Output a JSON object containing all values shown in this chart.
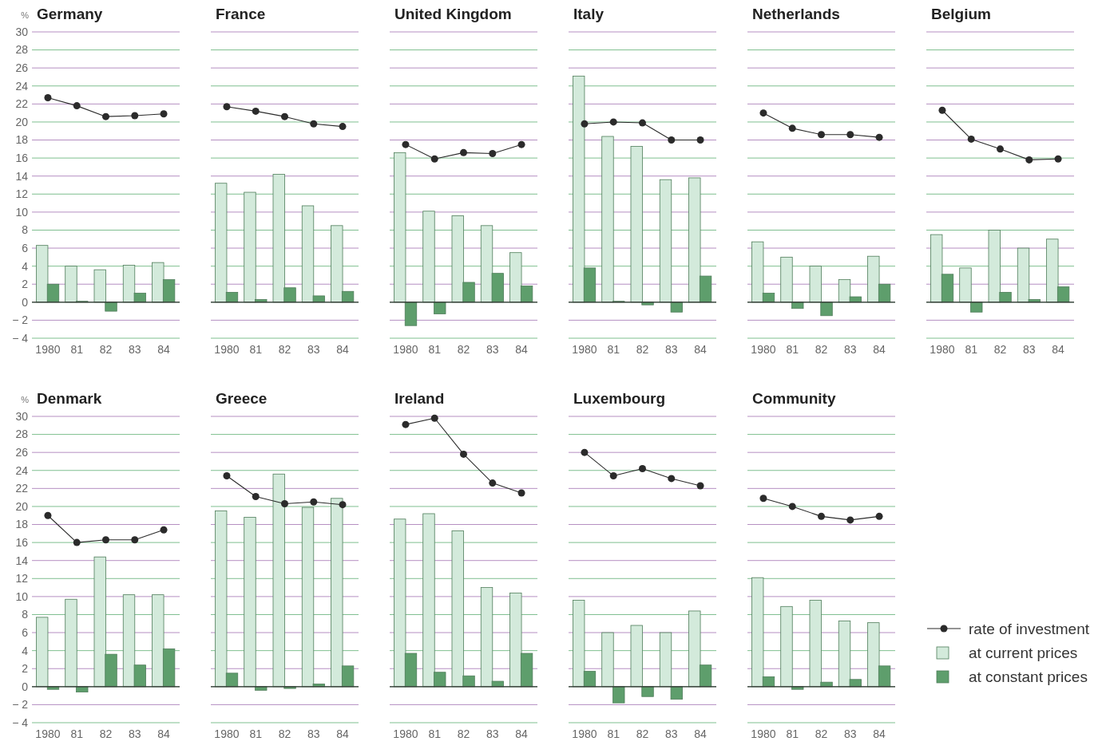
{
  "chart_data": [
    {
      "type": "bar",
      "title": "Germany",
      "ylabel": "%",
      "categories": [
        "1980",
        "81",
        "82",
        "83",
        "84"
      ],
      "ylim": [
        -4,
        30
      ],
      "yticks": [
        -4,
        -2,
        0,
        2,
        4,
        6,
        8,
        10,
        12,
        14,
        16,
        18,
        20,
        22,
        24,
        26,
        28,
        30
      ],
      "grid": true,
      "series": [
        {
          "color": "#d3eadb",
          "values": [
            6.3,
            4.0,
            3.6,
            4.1,
            4.4
          ]
        },
        {
          "color": "#5e9e6c",
          "values": [
            2.0,
            0.1,
            -1.0,
            1.0,
            2.5
          ]
        },
        {
          "type": "line",
          "marker": "circle",
          "color": "#2b2b2b",
          "values": [
            22.7,
            21.8,
            20.6,
            20.7,
            20.9
          ]
        }
      ]
    },
    {
      "type": "bar",
      "title": "France",
      "categories": [
        "1980",
        "81",
        "82",
        "83",
        "84"
      ],
      "ylim": [
        -4,
        30
      ],
      "yticks": [
        -4,
        -2,
        0,
        2,
        4,
        6,
        8,
        10,
        12,
        14,
        16,
        18,
        20,
        22,
        24,
        26,
        28,
        30
      ],
      "grid": true,
      "tick_labels": "x",
      "series": [
        {
          "color": "#d3eadb",
          "values": [
            13.2,
            12.2,
            14.2,
            10.7,
            8.5
          ]
        },
        {
          "color": "#5e9e6c",
          "values": [
            1.1,
            0.3,
            1.6,
            0.7,
            1.2
          ]
        },
        {
          "type": "line",
          "marker": "circle",
          "color": "#2b2b2b",
          "values": [
            21.7,
            21.2,
            20.6,
            19.8,
            19.5
          ]
        }
      ]
    },
    {
      "type": "bar",
      "title": "United Kingdom",
      "categories": [
        "1980",
        "81",
        "82",
        "83",
        "84"
      ],
      "ylim": [
        -4,
        30
      ],
      "yticks": [
        -4,
        -2,
        0,
        2,
        4,
        6,
        8,
        10,
        12,
        14,
        16,
        18,
        20,
        22,
        24,
        26,
        28,
        30
      ],
      "grid": true,
      "tick_labels": "x",
      "series": [
        {
          "color": "#d3eadb",
          "values": [
            16.6,
            10.1,
            9.6,
            8.5,
            5.5
          ]
        },
        {
          "color": "#5e9e6c",
          "values": [
            -2.6,
            -1.3,
            2.2,
            3.2,
            1.8
          ]
        },
        {
          "type": "line",
          "marker": "circle",
          "color": "#2b2b2b",
          "values": [
            17.5,
            15.9,
            16.6,
            16.5,
            17.5
          ]
        }
      ]
    },
    {
      "type": "bar",
      "title": "Italy",
      "categories": [
        "1980",
        "81",
        "82",
        "83",
        "84"
      ],
      "ylim": [
        -4,
        30
      ],
      "yticks": [
        -4,
        -2,
        0,
        2,
        4,
        6,
        8,
        10,
        12,
        14,
        16,
        18,
        20,
        22,
        24,
        26,
        28,
        30
      ],
      "grid": true,
      "tick_labels": "x",
      "series": [
        {
          "color": "#d3eadb",
          "values": [
            25.1,
            18.4,
            17.3,
            13.6,
            13.8
          ]
        },
        {
          "color": "#5e9e6c",
          "values": [
            3.8,
            0.1,
            -0.3,
            -1.1,
            2.9
          ]
        },
        {
          "type": "line",
          "marker": "circle",
          "color": "#2b2b2b",
          "values": [
            19.8,
            20.0,
            19.9,
            18.0,
            18.0
          ]
        }
      ]
    },
    {
      "type": "bar",
      "title": "Netherlands",
      "categories": [
        "1980",
        "81",
        "82",
        "83",
        "84"
      ],
      "ylim": [
        -4,
        30
      ],
      "yticks": [
        -4,
        -2,
        0,
        2,
        4,
        6,
        8,
        10,
        12,
        14,
        16,
        18,
        20,
        22,
        24,
        26,
        28,
        30
      ],
      "grid": true,
      "tick_labels": "x",
      "series": [
        {
          "color": "#d3eadb",
          "values": [
            6.7,
            5.0,
            4.0,
            2.5,
            5.1
          ]
        },
        {
          "color": "#5e9e6c",
          "values": [
            1.0,
            -0.7,
            -1.5,
            0.6,
            2.0
          ]
        },
        {
          "type": "line",
          "marker": "circle",
          "color": "#2b2b2b",
          "values": [
            21.0,
            19.3,
            18.6,
            18.6,
            18.3
          ]
        }
      ]
    },
    {
      "type": "bar",
      "title": "Belgium",
      "categories": [
        "1980",
        "81",
        "82",
        "83",
        "84"
      ],
      "ylim": [
        -4,
        30
      ],
      "yticks": [
        -4,
        -2,
        0,
        2,
        4,
        6,
        8,
        10,
        12,
        14,
        16,
        18,
        20,
        22,
        24,
        26,
        28,
        30
      ],
      "grid": true,
      "tick_labels": "x",
      "series": [
        {
          "color": "#d3eadb",
          "values": [
            7.5,
            3.8,
            8.0,
            6.0,
            7.0
          ]
        },
        {
          "color": "#5e9e6c",
          "values": [
            3.1,
            -1.1,
            1.1,
            0.3,
            1.7
          ]
        },
        {
          "type": "line",
          "marker": "circle",
          "color": "#2b2b2b",
          "values": [
            21.3,
            18.1,
            17.0,
            15.8,
            15.9
          ]
        }
      ]
    },
    {
      "type": "bar",
      "title": "Denmark",
      "ylabel": "%",
      "categories": [
        "1980",
        "81",
        "82",
        "83",
        "84"
      ],
      "ylim": [
        -4,
        30
      ],
      "yticks": [
        -4,
        -2,
        0,
        2,
        4,
        6,
        8,
        10,
        12,
        14,
        16,
        18,
        20,
        22,
        24,
        26,
        28,
        30
      ],
      "grid": true,
      "series": [
        {
          "color": "#d3eadb",
          "values": [
            7.7,
            9.7,
            14.4,
            10.2,
            10.2
          ]
        },
        {
          "color": "#5e9e6c",
          "values": [
            -0.3,
            -0.6,
            3.6,
            2.4,
            4.2
          ]
        },
        {
          "type": "line",
          "marker": "circle",
          "color": "#2b2b2b",
          "values": [
            19.0,
            16.0,
            16.3,
            16.3,
            17.4
          ]
        }
      ]
    },
    {
      "type": "bar",
      "title": "Greece",
      "categories": [
        "1980",
        "81",
        "82",
        "83",
        "84"
      ],
      "ylim": [
        -4,
        30
      ],
      "yticks": [
        -4,
        -2,
        0,
        2,
        4,
        6,
        8,
        10,
        12,
        14,
        16,
        18,
        20,
        22,
        24,
        26,
        28,
        30
      ],
      "grid": true,
      "tick_labels": "x",
      "series": [
        {
          "color": "#d3eadb",
          "values": [
            19.5,
            18.8,
            23.6,
            19.9,
            20.9
          ]
        },
        {
          "color": "#5e9e6c",
          "values": [
            1.5,
            -0.4,
            -0.2,
            0.3,
            2.3
          ]
        },
        {
          "type": "line",
          "marker": "circle",
          "color": "#2b2b2b",
          "values": [
            23.4,
            21.1,
            20.3,
            20.5,
            20.2
          ]
        }
      ]
    },
    {
      "type": "bar",
      "title": "Ireland",
      "categories": [
        "1980",
        "81",
        "82",
        "83",
        "84"
      ],
      "ylim": [
        -4,
        30
      ],
      "yticks": [
        -4,
        -2,
        0,
        2,
        4,
        6,
        8,
        10,
        12,
        14,
        16,
        18,
        20,
        22,
        24,
        26,
        28,
        30
      ],
      "grid": true,
      "tick_labels": "x",
      "series": [
        {
          "color": "#d3eadb",
          "values": [
            18.6,
            19.2,
            17.3,
            11.0,
            10.4
          ]
        },
        {
          "color": "#5e9e6c",
          "values": [
            3.7,
            1.6,
            1.2,
            0.6,
            3.7
          ]
        },
        {
          "type": "line",
          "marker": "circle",
          "color": "#2b2b2b",
          "values": [
            29.1,
            29.8,
            25.8,
            22.6,
            21.5
          ]
        }
      ]
    },
    {
      "type": "bar",
      "title": "Luxembourg",
      "categories": [
        "1980",
        "81",
        "82",
        "83",
        "84"
      ],
      "ylim": [
        -4,
        30
      ],
      "yticks": [
        -4,
        -2,
        0,
        2,
        4,
        6,
        8,
        10,
        12,
        14,
        16,
        18,
        20,
        22,
        24,
        26,
        28,
        30
      ],
      "grid": true,
      "tick_labels": "x",
      "series": [
        {
          "color": "#d3eadb",
          "values": [
            9.6,
            6.0,
            6.8,
            6.0,
            8.4
          ]
        },
        {
          "color": "#5e9e6c",
          "values": [
            1.7,
            -1.8,
            -1.1,
            -1.4,
            2.4
          ]
        },
        {
          "type": "line",
          "marker": "circle",
          "color": "#2b2b2b",
          "values": [
            26.0,
            23.4,
            24.2,
            23.1,
            22.3
          ]
        }
      ]
    },
    {
      "type": "bar",
      "title": "Community",
      "categories": [
        "1980",
        "81",
        "82",
        "83",
        "84"
      ],
      "ylim": [
        -4,
        30
      ],
      "yticks": [
        -4,
        -2,
        0,
        2,
        4,
        6,
        8,
        10,
        12,
        14,
        16,
        18,
        20,
        22,
        24,
        26,
        28,
        30
      ],
      "grid": true,
      "tick_labels": "x",
      "legend": "right",
      "series": [
        {
          "name": "rate of investment",
          "type": "line",
          "marker": "circle",
          "color": "#2b2b2b",
          "values": [
            20.9,
            20.0,
            18.9,
            18.5,
            18.9
          ]
        },
        {
          "name": "at current prices",
          "color": "#d3eadb",
          "values": [
            12.1,
            8.9,
            9.6,
            7.3,
            7.1
          ]
        },
        {
          "name": "at constant prices",
          "color": "#5e9e6c",
          "values": [
            1.1,
            -0.3,
            0.5,
            0.8,
            2.3
          ]
        }
      ]
    }
  ]
}
